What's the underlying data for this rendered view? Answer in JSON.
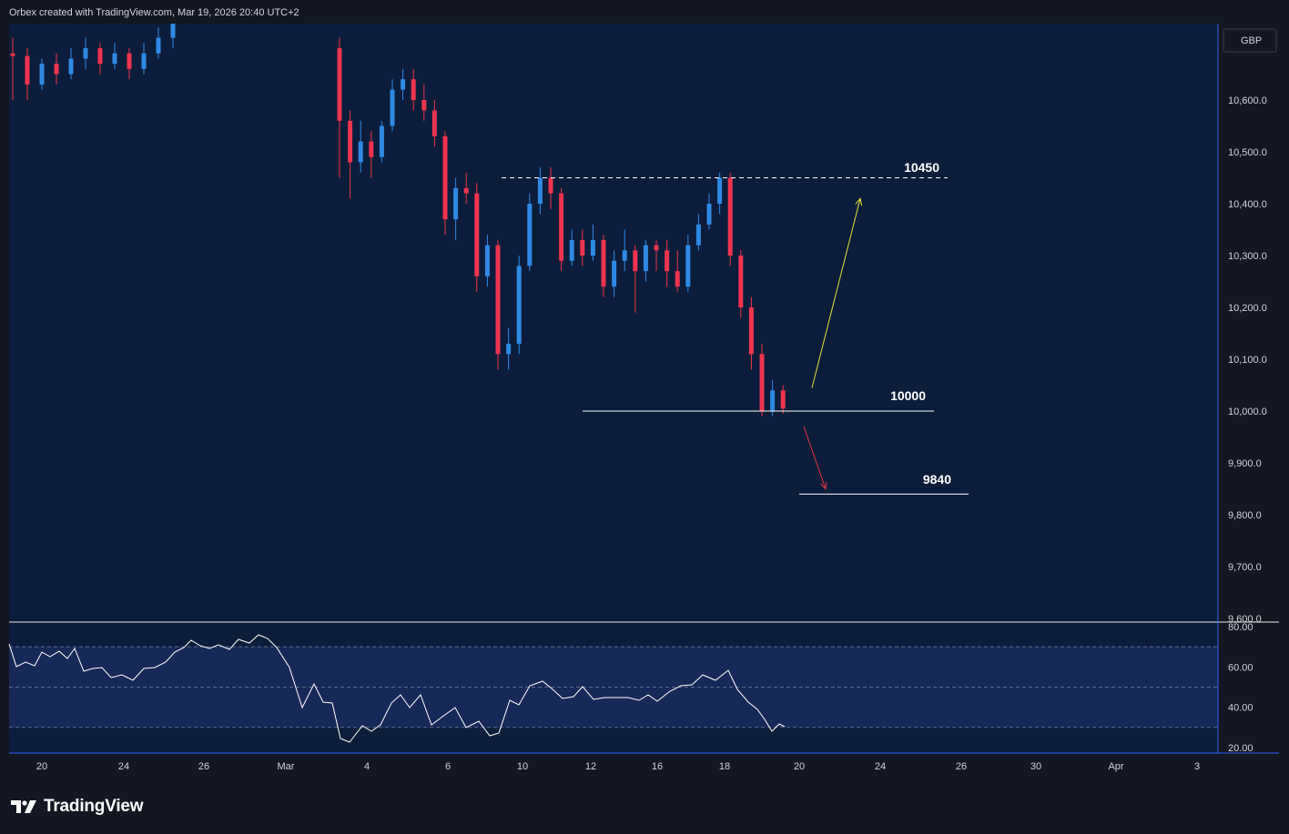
{
  "attribution": "Orbex created with TradingView.com, Mar 19, 2026 20:40 UTC+2",
  "currency": "GBP",
  "brand": "TradingView",
  "colors": {
    "up": "#2f8ae5",
    "down": "#f0344f",
    "background": "#0b1d3a",
    "up_arrow": "#e6e43a",
    "down_arrow": "#e0334a"
  },
  "chart_data": {
    "type": "candlestick",
    "title": "",
    "price_axis": {
      "ticks": [
        "10,600.0",
        "10,500.0",
        "10,400.0",
        "10,300.0",
        "10,200.0",
        "10,100.0",
        "10,000.0",
        "9,900.0",
        "9,800.0",
        "9,700.0",
        "9,600.0"
      ],
      "range": [
        9600,
        10680
      ]
    },
    "time_axis": {
      "ticks": [
        "20",
        "24",
        "26",
        "Mar",
        "4",
        "6",
        "10",
        "12",
        "16",
        "18",
        "20",
        "24",
        "26",
        "30",
        "Apr",
        "3"
      ]
    },
    "levels": [
      {
        "label": "10450",
        "value": 10450,
        "style": "dashed"
      },
      {
        "label": "10000",
        "value": 10000,
        "style": "solid"
      },
      {
        "label": "9840",
        "value": 9840,
        "style": "solid"
      }
    ],
    "projections": [
      {
        "direction": "up",
        "from": 10045,
        "to": 10410
      },
      {
        "direction": "down",
        "from": 9970,
        "to": 9850
      }
    ],
    "candles_approx": [
      [
        10690,
        10685,
        10720,
        10600
      ],
      [
        10685,
        10630,
        10700,
        10600
      ],
      [
        10630,
        10670,
        10680,
        10620
      ],
      [
        10670,
        10650,
        10690,
        10630
      ],
      [
        10650,
        10680,
        10700,
        10640
      ],
      [
        10680,
        10700,
        10720,
        10660
      ],
      [
        10700,
        10670,
        10710,
        10650
      ],
      [
        10670,
        10690,
        10710,
        10660
      ],
      [
        10690,
        10660,
        10700,
        10640
      ],
      [
        10660,
        10690,
        10710,
        10650
      ],
      [
        10690,
        10720,
        10740,
        10680
      ],
      [
        10720,
        10760,
        10780,
        10700
      ],
      [
        10700,
        10560,
        10720,
        10450
      ],
      [
        10560,
        10480,
        10580,
        10410
      ],
      [
        10480,
        10520,
        10560,
        10460
      ],
      [
        10520,
        10490,
        10540,
        10450
      ],
      [
        10490,
        10550,
        10560,
        10480
      ],
      [
        10550,
        10620,
        10640,
        10540
      ],
      [
        10620,
        10640,
        10660,
        10600
      ],
      [
        10640,
        10600,
        10660,
        10580
      ],
      [
        10600,
        10580,
        10630,
        10560
      ],
      [
        10580,
        10530,
        10600,
        10510
      ],
      [
        10530,
        10370,
        10540,
        10340
      ],
      [
        10370,
        10430,
        10450,
        10330
      ],
      [
        10430,
        10420,
        10460,
        10400
      ],
      [
        10420,
        10260,
        10440,
        10230
      ],
      [
        10260,
        10320,
        10340,
        10240
      ],
      [
        10320,
        10110,
        10330,
        10080
      ],
      [
        10110,
        10130,
        10160,
        10080
      ],
      [
        10130,
        10280,
        10300,
        10110
      ],
      [
        10280,
        10400,
        10420,
        10270
      ],
      [
        10400,
        10450,
        10470,
        10380
      ],
      [
        10450,
        10420,
        10470,
        10390
      ],
      [
        10420,
        10290,
        10430,
        10270
      ],
      [
        10290,
        10330,
        10350,
        10280
      ],
      [
        10330,
        10300,
        10350,
        10280
      ],
      [
        10300,
        10330,
        10360,
        10290
      ],
      [
        10330,
        10240,
        10340,
        10220
      ],
      [
        10240,
        10290,
        10310,
        10220
      ],
      [
        10290,
        10310,
        10350,
        10270
      ],
      [
        10310,
        10270,
        10320,
        10190
      ],
      [
        10270,
        10320,
        10330,
        10250
      ],
      [
        10320,
        10310,
        10330,
        10270
      ],
      [
        10310,
        10270,
        10330,
        10240
      ],
      [
        10270,
        10240,
        10310,
        10230
      ],
      [
        10240,
        10320,
        10340,
        10230
      ],
      [
        10320,
        10360,
        10380,
        10310
      ],
      [
        10360,
        10400,
        10420,
        10350
      ],
      [
        10400,
        10450,
        10460,
        10380
      ],
      [
        10450,
        10300,
        10460,
        10280
      ],
      [
        10300,
        10200,
        10310,
        10180
      ],
      [
        10200,
        10110,
        10220,
        10080
      ],
      [
        10110,
        10000,
        10130,
        9990
      ],
      [
        10000,
        10040,
        10060,
        9990
      ],
      [
        10040,
        10005,
        10050,
        9995
      ]
    ],
    "rsi": {
      "ticks": [
        "80.00",
        "60.00",
        "40.00",
        "20.00"
      ],
      "range": [
        15,
        82
      ],
      "levels": [
        70,
        50,
        30
      ]
    }
  }
}
